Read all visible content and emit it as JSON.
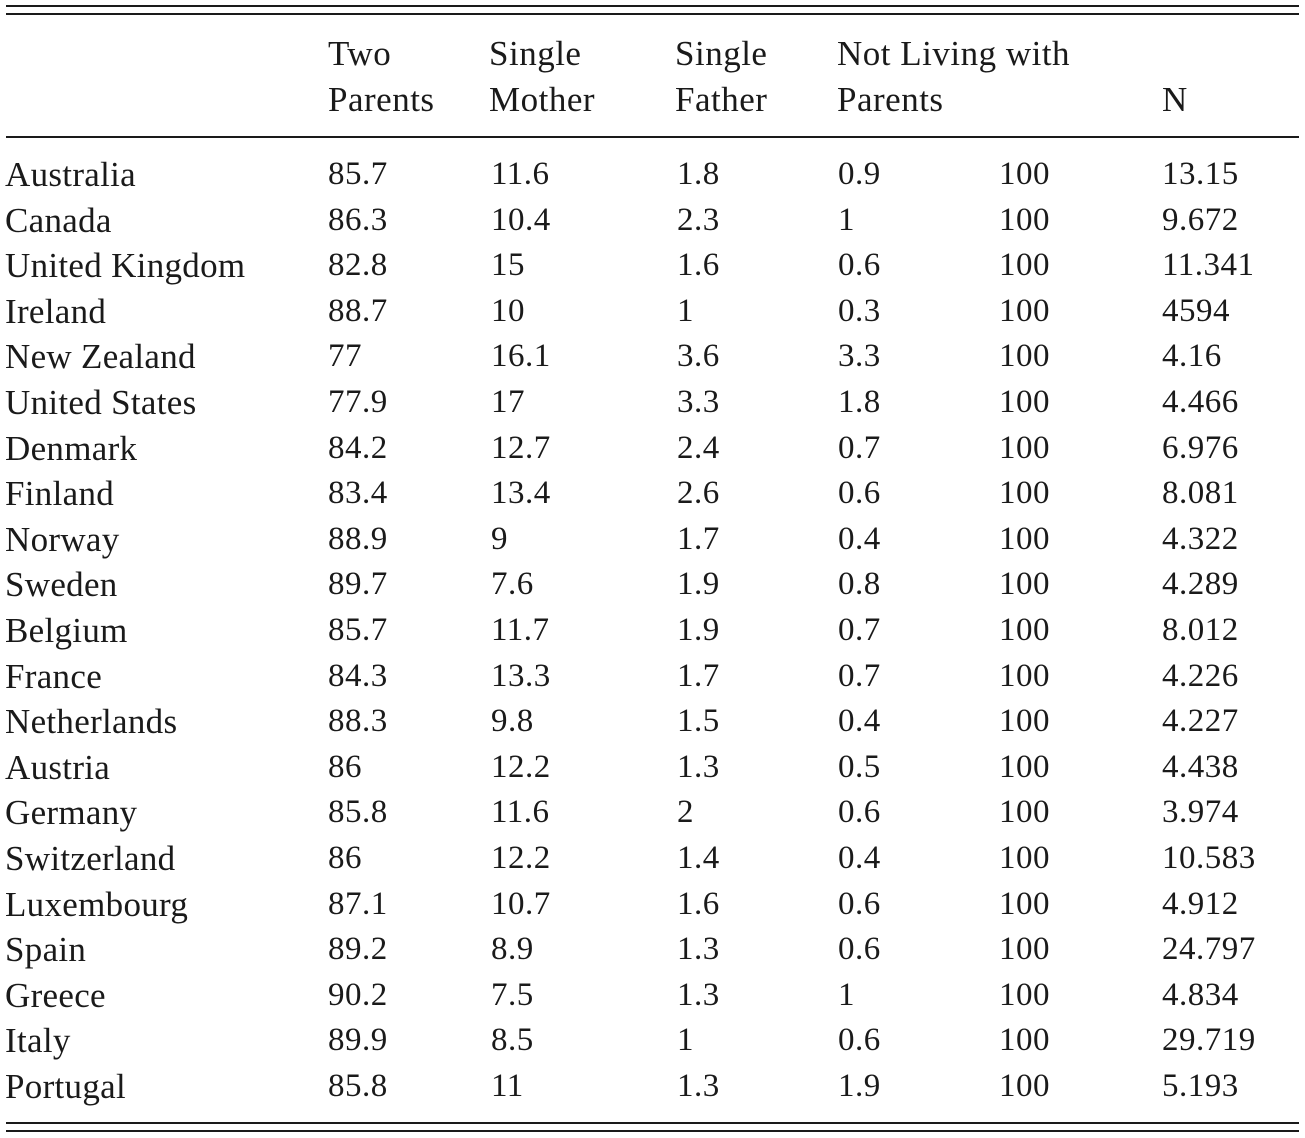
{
  "table": {
    "headers": {
      "two_parents": [
        "Two",
        "Parents"
      ],
      "single_mother": [
        "Single",
        "Mother"
      ],
      "single_father": [
        "Single",
        "Father"
      ],
      "not_living": [
        "Not Living with",
        "Parents"
      ],
      "total": "",
      "n": "N"
    },
    "rows": [
      {
        "country": "Australia",
        "two": "85.7",
        "smom": "11.6",
        "sdad": "1.8",
        "notl": "0.9",
        "total": "100",
        "n": "13.15"
      },
      {
        "country": "Canada",
        "two": "86.3",
        "smom": "10.4",
        "sdad": "2.3",
        "notl": "1",
        "total": "100",
        "n": "9.672"
      },
      {
        "country": "United Kingdom",
        "two": "82.8",
        "smom": "15",
        "sdad": "1.6",
        "notl": "0.6",
        "total": "100",
        "n": "11.341"
      },
      {
        "country": "Ireland",
        "two": "88.7",
        "smom": "10",
        "sdad": "1",
        "notl": "0.3",
        "total": "100",
        "n": "4594"
      },
      {
        "country": "New Zealand",
        "two": "77",
        "smom": "16.1",
        "sdad": "3.6",
        "notl": "3.3",
        "total": "100",
        "n": "4.16"
      },
      {
        "country": "United States",
        "two": "77.9",
        "smom": "17",
        "sdad": "3.3",
        "notl": "1.8",
        "total": "100",
        "n": "4.466"
      },
      {
        "country": "Denmark",
        "two": "84.2",
        "smom": "12.7",
        "sdad": "2.4",
        "notl": "0.7",
        "total": "100",
        "n": "6.976"
      },
      {
        "country": "Finland",
        "two": "83.4",
        "smom": "13.4",
        "sdad": "2.6",
        "notl": "0.6",
        "total": "100",
        "n": "8.081"
      },
      {
        "country": "Norway",
        "two": "88.9",
        "smom": "9",
        "sdad": "1.7",
        "notl": "0.4",
        "total": "100",
        "n": "4.322"
      },
      {
        "country": "Sweden",
        "two": "89.7",
        "smom": "7.6",
        "sdad": "1.9",
        "notl": "0.8",
        "total": "100",
        "n": "4.289"
      },
      {
        "country": "Belgium",
        "two": "85.7",
        "smom": "11.7",
        "sdad": "1.9",
        "notl": "0.7",
        "total": "100",
        "n": "8.012"
      },
      {
        "country": "France",
        "two": "84.3",
        "smom": "13.3",
        "sdad": "1.7",
        "notl": "0.7",
        "total": "100",
        "n": "4.226"
      },
      {
        "country": "Netherlands",
        "two": "88.3",
        "smom": "9.8",
        "sdad": "1.5",
        "notl": "0.4",
        "total": "100",
        "n": "4.227"
      },
      {
        "country": "Austria",
        "two": "86",
        "smom": "12.2",
        "sdad": "1.3",
        "notl": "0.5",
        "total": "100",
        "n": "4.438"
      },
      {
        "country": "Germany",
        "two": "85.8",
        "smom": "11.6",
        "sdad": "2",
        "notl": "0.6",
        "total": "100",
        "n": "3.974"
      },
      {
        "country": "Switzerland",
        "two": "86",
        "smom": "12.2",
        "sdad": "1.4",
        "notl": "0.4",
        "total": "100",
        "n": "10.583"
      },
      {
        "country": "Luxembourg",
        "two": "87.1",
        "smom": "10.7",
        "sdad": "1.6",
        "notl": "0.6",
        "total": "100",
        "n": "4.912"
      },
      {
        "country": "Spain",
        "two": "89.2",
        "smom": "8.9",
        "sdad": "1.3",
        "notl": "0.6",
        "total": "100",
        "n": "24.797"
      },
      {
        "country": "Greece",
        "two": "90.2",
        "smom": "7.5",
        "sdad": "1.3",
        "notl": "1",
        "total": "100",
        "n": "4.834"
      },
      {
        "country": "Italy",
        "two": "89.9",
        "smom": "8.5",
        "sdad": "1",
        "notl": "0.6",
        "total": "100",
        "n": "29.719"
      },
      {
        "country": "Portugal",
        "two": "85.8",
        "smom": "11",
        "sdad": "1.3",
        "notl": "1.9",
        "total": "100",
        "n": "5.193"
      }
    ]
  }
}
